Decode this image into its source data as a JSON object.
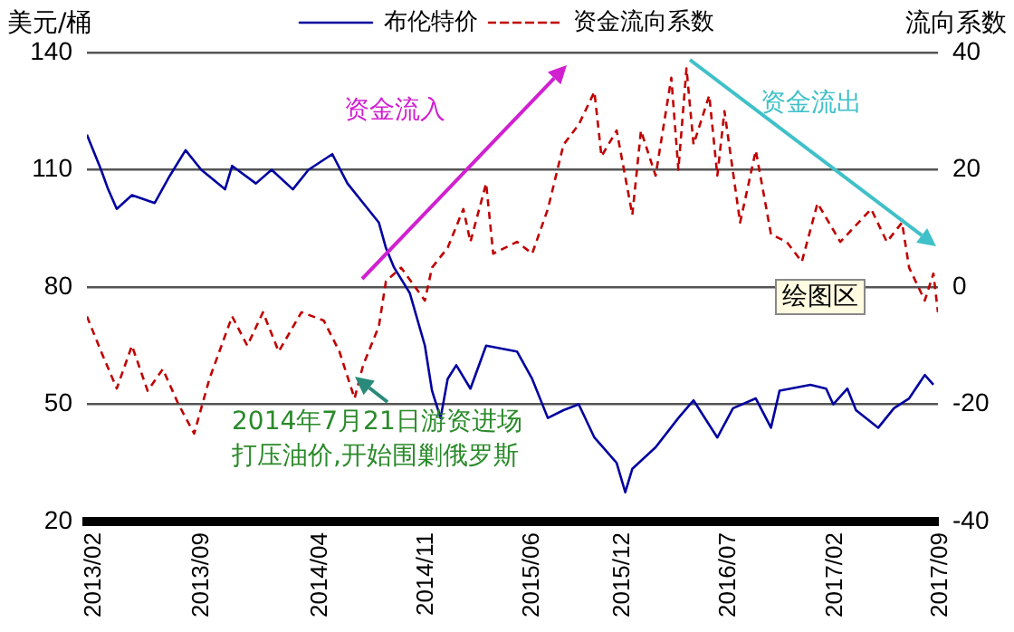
{
  "chart_data": {
    "type": "line",
    "ylabel": "美元/桶",
    "y2label": "流向系数",
    "xlim": [
      "2013-02-01",
      "2017-09-10"
    ],
    "xticks": [
      {
        "value": "2013-02-01",
        "label": "2013/02"
      },
      {
        "value": "2013-09-01",
        "label": "2013/09"
      },
      {
        "value": "2014-04-24",
        "label": "2014/04"
      },
      {
        "value": "2014-11-20",
        "label": "2014/11"
      },
      {
        "value": "2015-06-16",
        "label": "2015/06"
      },
      {
        "value": "2015-12-12",
        "label": "2015/12"
      },
      {
        "value": "2016-07-09",
        "label": "2016/07"
      },
      {
        "value": "2017-02-05",
        "label": "2017/02"
      },
      {
        "value": "2017-09-01",
        "label": "2017/09"
      }
    ],
    "ylim": [
      20,
      140
    ],
    "yticks": [
      20,
      50,
      80,
      110,
      140
    ],
    "y2lim": [
      -40,
      40
    ],
    "y2ticks": [
      -40,
      -20,
      0,
      20,
      40
    ],
    "grid": "y",
    "legend": "top",
    "marker": "none",
    "series": [
      {
        "name": "布伦特价",
        "color": "#0000a0",
        "line_style": "solid",
        "x": [
          "2013-02-01",
          "2013-03-01",
          "2013-03-15",
          "2013-04-01",
          "2013-05-01",
          "2013-06-15",
          "2013-07-15",
          "2013-08-15",
          "2013-09-15",
          "2013-11-01",
          "2013-11-15",
          "2014-01-01",
          "2014-02-01",
          "2014-03-15",
          "2014-04-15",
          "2014-06-01",
          "2014-07-01",
          "2014-08-01",
          "2014-09-01",
          "2014-09-15",
          "2014-10-01",
          "2014-11-01",
          "2014-12-01",
          "2014-12-15",
          "2015-01-01",
          "2015-01-15",
          "2015-02-01",
          "2015-03-01",
          "2015-04-01",
          "2015-06-01",
          "2015-07-01",
          "2015-08-01",
          "2015-09-01",
          "2015-10-01",
          "2015-11-01",
          "2015-12-15",
          "2016-01-01",
          "2016-01-15",
          "2016-03-01",
          "2016-04-15",
          "2016-05-15",
          "2016-07-01",
          "2016-08-01",
          "2016-09-15",
          "2016-10-15",
          "2016-11-01",
          "2017-01-01",
          "2017-02-01",
          "2017-02-15",
          "2017-03-15",
          "2017-04-01",
          "2017-05-15",
          "2017-06-15",
          "2017-07-15",
          "2017-08-15",
          "2017-09-01"
        ],
        "values": [
          119,
          110,
          105,
          100,
          103.5,
          101.5,
          108.5,
          115,
          110,
          105,
          111,
          106.5,
          110,
          105,
          110,
          114,
          106.5,
          101.5,
          96.5,
          90,
          85,
          78.5,
          65,
          53.5,
          46.5,
          56.5,
          60,
          54,
          65,
          63.5,
          56.5,
          46.5,
          48.5,
          50,
          41.5,
          35,
          27.5,
          33.5,
          39,
          46.5,
          51,
          41.5,
          49,
          51.5,
          44,
          53.5,
          55,
          54,
          50,
          54,
          48.5,
          44,
          49,
          51.5,
          57.5,
          55
        ]
      },
      {
        "name": "资金流向系数",
        "color": "#c00000",
        "line_style": "dashed",
        "axis": "y2",
        "x": [
          "2013-02-01",
          "2013-03-01",
          "2013-04-01",
          "2013-05-01",
          "2013-06-01",
          "2013-07-01",
          "2013-08-01",
          "2013-09-01",
          "2013-10-01",
          "2013-11-15",
          "2013-12-15",
          "2014-01-15",
          "2014-02-15",
          "2014-04-01",
          "2014-05-15",
          "2014-06-15",
          "2014-07-15",
          "2014-08-01",
          "2014-09-01",
          "2014-09-15",
          "2014-10-15",
          "2014-12-01",
          "2014-12-15",
          "2015-01-15",
          "2015-02-15",
          "2015-03-01",
          "2015-04-01",
          "2015-04-15",
          "2015-06-01",
          "2015-07-01",
          "2015-08-01",
          "2015-09-01",
          "2015-10-01",
          "2015-11-01",
          "2015-11-15",
          "2015-12-15",
          "2016-01-15",
          "2016-02-01",
          "2016-03-01",
          "2016-04-01",
          "2016-04-15",
          "2016-05-01",
          "2016-05-15",
          "2016-06-15",
          "2016-07-01",
          "2016-07-15",
          "2016-08-15",
          "2016-09-15",
          "2016-10-15",
          "2016-11-15",
          "2016-12-15",
          "2017-01-15",
          "2017-03-01",
          "2017-05-01",
          "2017-06-01",
          "2017-07-01",
          "2017-07-15",
          "2017-08-15",
          "2017-09-01",
          "2017-09-10"
        ],
        "values": [
          -5,
          -11,
          -17.3,
          -10,
          -17.7,
          -14,
          -20,
          -25,
          -15.7,
          -5,
          -10,
          -4.3,
          -11,
          -4.3,
          -5.7,
          -11,
          -19,
          -13.3,
          -6.7,
          1,
          3.3,
          -2.3,
          3.3,
          6.7,
          13.3,
          7.7,
          17.7,
          5.7,
          7.7,
          5.7,
          13.3,
          24.3,
          27.7,
          33.3,
          22.3,
          26.7,
          12.3,
          26.7,
          19,
          35.7,
          20,
          37.3,
          24.3,
          32.7,
          19,
          30,
          11,
          23.3,
          9,
          7.7,
          4.3,
          14.3,
          7.7,
          13.3,
          7.7,
          11,
          3.3,
          -2.3,
          2.3,
          -4.3
        ]
      }
    ],
    "annotations": [
      "资金流入",
      "资金流出",
      "绘图区",
      "2014年7月21日游资进场",
      "打压油价,开始围剿俄罗斯"
    ]
  }
}
